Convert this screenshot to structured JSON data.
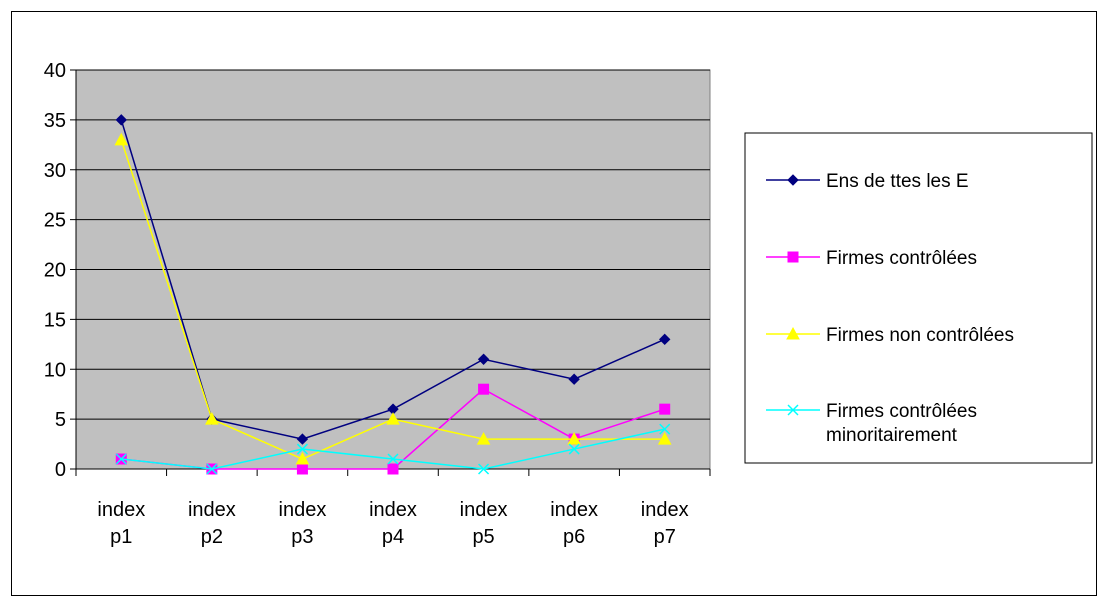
{
  "chart_data": {
    "type": "line",
    "title": "",
    "xlabel": "",
    "ylabel": "",
    "categories": [
      [
        "index",
        "p1"
      ],
      [
        "index",
        "p2"
      ],
      [
        "index",
        "p3"
      ],
      [
        "index",
        "p4"
      ],
      [
        "index",
        "p5"
      ],
      [
        "index",
        "p6"
      ],
      [
        "index",
        "p7"
      ]
    ],
    "ylim": [
      0,
      40
    ],
    "yticks": [
      "0",
      "5",
      "10",
      "15",
      "20",
      "25",
      "30",
      "35",
      "40"
    ],
    "grid": true,
    "plot_background": "#c0c0c0",
    "legend_position": "right",
    "series": [
      {
        "name": "Ens de ttes les E",
        "color": "#000080",
        "marker": "diamond",
        "values": [
          35,
          5,
          3,
          6,
          11,
          9,
          13
        ]
      },
      {
        "name": "Firmes contrôlées",
        "color": "#ff00ff",
        "marker": "square",
        "values": [
          1,
          0,
          0,
          0,
          8,
          3,
          6
        ]
      },
      {
        "name": "Firmes non contrôlées",
        "color": "#ffff00",
        "marker": "triangle",
        "values": [
          33,
          5,
          1,
          5,
          3,
          3,
          3
        ]
      },
      {
        "name": "Firmes contrôlées minoritairement",
        "color": "#00ffff",
        "marker": "x",
        "values": [
          1,
          0,
          2,
          1,
          0,
          2,
          4
        ]
      }
    ]
  }
}
